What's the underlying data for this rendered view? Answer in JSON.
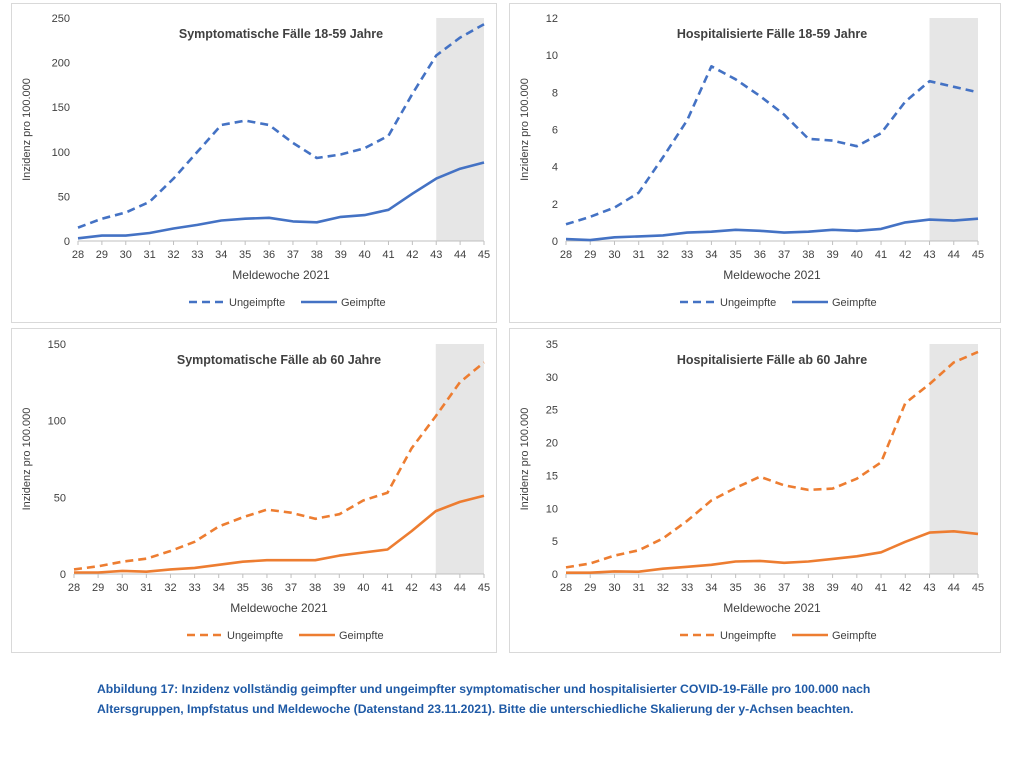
{
  "chart_data": [
    {
      "type": "line",
      "title": "Symptomatische Fälle 18-59 Jahre",
      "xlabel": "Meldewoche 2021",
      "ylabel": "Inzidenz pro 100.000",
      "categories": [
        "28",
        "29",
        "30",
        "31",
        "32",
        "33",
        "34",
        "35",
        "36",
        "37",
        "38",
        "39",
        "40",
        "41",
        "42",
        "43",
        "44",
        "45"
      ],
      "ylim": [
        0,
        250
      ],
      "yticks": [
        "0",
        "50",
        "100",
        "150",
        "200",
        "250"
      ],
      "shaded_from": "43",
      "series": [
        {
          "name": "Ungeimpfte",
          "style": "dashed",
          "color": "#4472c4",
          "values": [
            15,
            25,
            32,
            44,
            70,
            100,
            130,
            135,
            130,
            110,
            93,
            97,
            104,
            118,
            165,
            208,
            228,
            243
          ]
        },
        {
          "name": "Geimpfte",
          "style": "solid",
          "color": "#4472c4",
          "values": [
            3,
            6,
            6,
            9,
            14,
            18,
            23,
            25,
            26,
            22,
            21,
            27,
            29,
            35,
            53,
            70,
            81,
            88
          ]
        }
      ]
    },
    {
      "type": "line",
      "title": "Hospitalisierte Fälle 18-59 Jahre",
      "xlabel": "Meldewoche 2021",
      "ylabel": "Inzidenz pro 100.000",
      "categories": [
        "28",
        "29",
        "30",
        "31",
        "32",
        "33",
        "34",
        "35",
        "36",
        "37",
        "38",
        "39",
        "40",
        "41",
        "42",
        "43",
        "44",
        "45"
      ],
      "ylim": [
        0,
        12
      ],
      "yticks": [
        "0",
        "2",
        "4",
        "6",
        "8",
        "10",
        "12"
      ],
      "shaded_from": "43",
      "series": [
        {
          "name": "Ungeimpfte",
          "style": "dashed",
          "color": "#4472c4",
          "values": [
            0.9,
            1.3,
            1.8,
            2.6,
            4.5,
            6.5,
            9.4,
            8.7,
            7.8,
            6.8,
            5.5,
            5.4,
            5.1,
            5.8,
            7.5,
            8.6,
            8.3,
            8.0
          ]
        },
        {
          "name": "Geimpfte",
          "style": "solid",
          "color": "#4472c4",
          "values": [
            0.1,
            0.05,
            0.2,
            0.25,
            0.3,
            0.45,
            0.5,
            0.6,
            0.55,
            0.45,
            0.5,
            0.6,
            0.55,
            0.65,
            1.0,
            1.15,
            1.1,
            1.2
          ]
        }
      ]
    },
    {
      "type": "line",
      "title": "Symptomatische Fälle ab 60 Jahre",
      "xlabel": "Meldewoche 2021",
      "ylabel": "Inzidenz pro 100.000",
      "categories": [
        "28",
        "29",
        "30",
        "31",
        "32",
        "33",
        "34",
        "35",
        "36",
        "37",
        "38",
        "39",
        "40",
        "41",
        "42",
        "43",
        "44",
        "45"
      ],
      "ylim": [
        0,
        150
      ],
      "yticks": [
        "0",
        "50",
        "100",
        "150"
      ],
      "shaded_from": "43",
      "series": [
        {
          "name": "Ungeimpfte",
          "style": "dashed",
          "color": "#ed7d31",
          "values": [
            3,
            5,
            8,
            10,
            15,
            21,
            31,
            37,
            42,
            40,
            36,
            39,
            48,
            53,
            82,
            103,
            125,
            138
          ]
        },
        {
          "name": "Geimpfte",
          "style": "solid",
          "color": "#ed7d31",
          "values": [
            1,
            1,
            2,
            1.5,
            3,
            4,
            6,
            8,
            9,
            9,
            9,
            12,
            14,
            16,
            28,
            41,
            47,
            51
          ]
        }
      ]
    },
    {
      "type": "line",
      "title": "Hospitalisierte Fälle ab 60 Jahre",
      "xlabel": "Meldewoche 2021",
      "ylabel": "Inzidenz pro 100.000",
      "categories": [
        "28",
        "29",
        "30",
        "31",
        "32",
        "33",
        "34",
        "35",
        "36",
        "37",
        "38",
        "39",
        "40",
        "41",
        "42",
        "43",
        "44",
        "45"
      ],
      "ylim": [
        0,
        35
      ],
      "yticks": [
        "0",
        "5",
        "10",
        "15",
        "20",
        "25",
        "30",
        "35"
      ],
      "shaded_from": "43",
      "series": [
        {
          "name": "Ungeimpfte",
          "style": "dashed",
          "color": "#ed7d31",
          "values": [
            1,
            1.6,
            2.8,
            3.6,
            5.4,
            8.1,
            11.2,
            13.1,
            14.8,
            13.5,
            12.8,
            13.0,
            14.5,
            17.0,
            26.0,
            28.9,
            32.2,
            33.8
          ]
        },
        {
          "name": "Geimpfte",
          "style": "solid",
          "color": "#ed7d31",
          "values": [
            0.2,
            0.2,
            0.4,
            0.35,
            0.8,
            1.1,
            1.4,
            1.9,
            2.0,
            1.7,
            1.9,
            2.3,
            2.7,
            3.3,
            4.9,
            6.3,
            6.5,
            6.1
          ]
        }
      ]
    }
  ],
  "caption": "Abbildung 17: Inzidenz vollständig geimpfter und ungeimpfter symptomatischer und hospitalisierter COVID-19-Fälle pro 100.000 nach Altersgruppen, Impfstatus und Meldewoche (Datenstand 23.11.2021). Bitte die unterschiedliche Skalierung der y-Achsen beachten."
}
